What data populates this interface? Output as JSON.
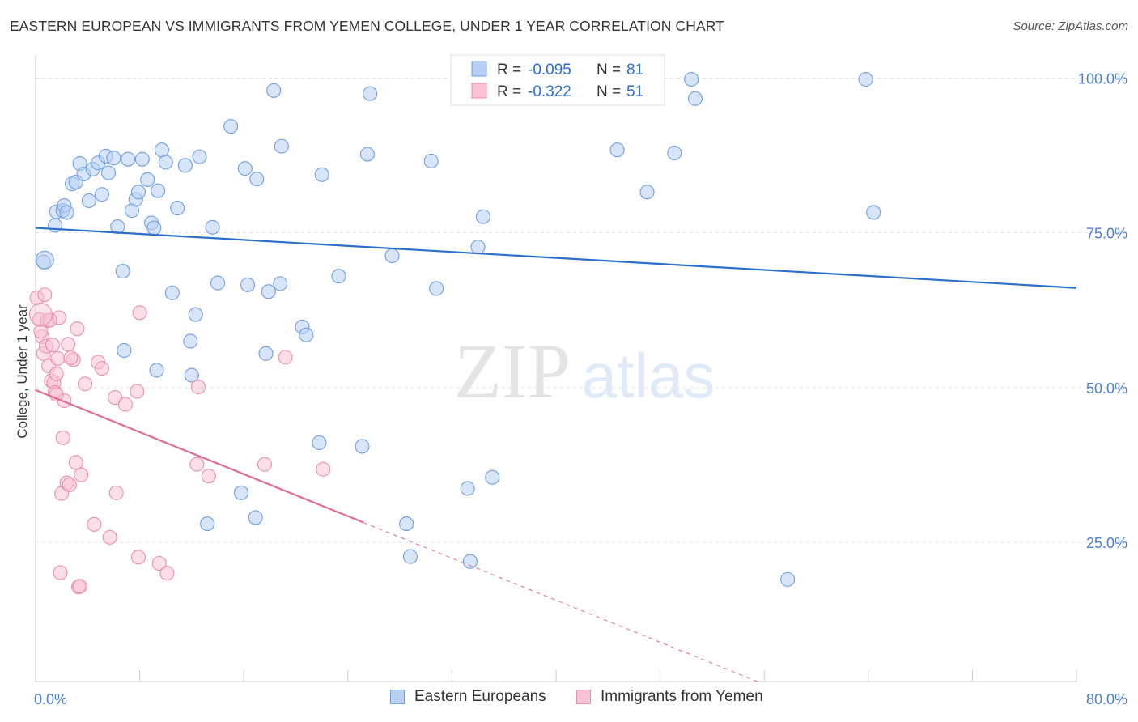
{
  "header": {
    "title": "EASTERN EUROPEAN VS IMMIGRANTS FROM YEMEN COLLEGE, UNDER 1 YEAR CORRELATION CHART",
    "source": "Source: ZipAtlas.com"
  },
  "watermark": {
    "zip": "ZIP",
    "atlas": "atlas"
  },
  "colors": {
    "blue": "#6f9fe0",
    "blue_fill": "#b8d0f3",
    "blue_line": "#2b6fcc",
    "pink": "#ea8fae",
    "pink_fill": "#f7c3d4",
    "pink_line": "#e06b94",
    "axis_text": "#4a7fd0"
  },
  "chart_data": {
    "type": "scatter",
    "title": "EASTERN EUROPEAN VS IMMIGRANTS FROM YEMEN COLLEGE, UNDER 1 YEAR CORRELATION CHART",
    "xlabel": "",
    "ylabel": "College, Under 1 year",
    "xlim": [
      0,
      80
    ],
    "ylim": [
      0,
      104
    ],
    "x_tick_labels": [
      "0.0%",
      "80.0%"
    ],
    "y_ticks": [
      25,
      50,
      75,
      100
    ],
    "y_tick_labels": [
      "25.0%",
      "50.0%",
      "75.0%",
      "100.0%"
    ],
    "grid": true,
    "legend": {
      "placement": "top-center",
      "entries": [
        {
          "r_label": "R =",
          "r": "-0.095",
          "n_label": "N =",
          "n": "81"
        },
        {
          "r_label": "R =",
          "r": "-0.322",
          "n_label": "N =",
          "n": "51"
        }
      ]
    },
    "series": [
      {
        "name": "Eastern Europeans",
        "trend": {
          "x": [
            0,
            80
          ],
          "y": [
            75.8,
            66.1
          ],
          "dashed_extension": false
        },
        "points": [
          [
            0.6,
            70.3
          ],
          [
            1.5,
            76.2
          ],
          [
            1.6,
            78.4
          ],
          [
            2.1,
            78.6
          ],
          [
            2.2,
            79.4
          ],
          [
            2.4,
            78.3
          ],
          [
            2.8,
            82.9
          ],
          [
            3.1,
            83.2
          ],
          [
            3.4,
            86.2
          ],
          [
            3.7,
            84.5
          ],
          [
            4.1,
            80.2
          ],
          [
            4.4,
            85.3
          ],
          [
            4.8,
            86.3
          ],
          [
            5.1,
            81.2
          ],
          [
            5.4,
            87.4
          ],
          [
            5.6,
            84.7
          ],
          [
            6.0,
            87.1
          ],
          [
            6.3,
            76.0
          ],
          [
            6.7,
            68.8
          ],
          [
            7.1,
            86.9
          ],
          [
            7.4,
            78.6
          ],
          [
            7.7,
            80.4
          ],
          [
            7.9,
            81.6
          ],
          [
            8.2,
            86.9
          ],
          [
            8.6,
            83.6
          ],
          [
            8.9,
            76.6
          ],
          [
            9.1,
            75.8
          ],
          [
            9.4,
            81.8
          ],
          [
            9.7,
            88.4
          ],
          [
            10.0,
            86.4
          ],
          [
            10.5,
            65.3
          ],
          [
            10.9,
            79.0
          ],
          [
            11.5,
            85.9
          ],
          [
            11.9,
            57.5
          ],
          [
            12.3,
            61.8
          ],
          [
            12.6,
            87.3
          ],
          [
            13.6,
            75.9
          ],
          [
            14.0,
            66.9
          ],
          [
            15.0,
            92.2
          ],
          [
            16.1,
            85.4
          ],
          [
            16.3,
            66.6
          ],
          [
            17.0,
            83.7
          ],
          [
            17.7,
            55.5
          ],
          [
            17.9,
            65.5
          ],
          [
            18.3,
            98.0
          ],
          [
            18.8,
            66.8
          ],
          [
            18.9,
            89.0
          ],
          [
            20.5,
            59.8
          ],
          [
            20.8,
            58.5
          ],
          [
            21.8,
            41.1
          ],
          [
            22.0,
            84.4
          ],
          [
            23.3,
            68.0
          ],
          [
            25.1,
            40.5
          ],
          [
            25.5,
            87.7
          ],
          [
            25.7,
            97.5
          ],
          [
            27.4,
            71.3
          ],
          [
            28.5,
            28.0
          ],
          [
            28.8,
            22.7
          ],
          [
            30.4,
            86.6
          ],
          [
            30.8,
            66.0
          ],
          [
            33.2,
            33.7
          ],
          [
            33.4,
            21.9
          ],
          [
            34.0,
            72.7
          ],
          [
            34.4,
            77.6
          ],
          [
            35.1,
            35.5
          ],
          [
            35.5,
            99.9
          ],
          [
            38.8,
            100.2
          ],
          [
            44.7,
            88.4
          ],
          [
            47.0,
            81.6
          ],
          [
            49.1,
            87.9
          ],
          [
            50.4,
            99.8
          ],
          [
            50.7,
            96.7
          ],
          [
            57.8,
            19.0
          ],
          [
            63.8,
            99.8
          ],
          [
            64.4,
            78.3
          ],
          [
            9.3,
            52.8
          ],
          [
            15.8,
            33.0
          ],
          [
            16.9,
            29.0
          ],
          [
            13.2,
            28.0
          ],
          [
            12.0,
            52.0
          ],
          [
            6.8,
            56.0
          ]
        ]
      },
      {
        "name": "Immigrants from Yemen",
        "trend": {
          "x": [
            0,
            25.2
          ],
          "y": [
            49.6,
            28.2
          ],
          "dashed_extension": true,
          "dash_to": {
            "x": [
              25.2,
              80
            ],
            "y": [
              28.2,
              -18.3
            ]
          }
        },
        "points": [
          [
            0.1,
            64.5
          ],
          [
            0.3,
            61.0
          ],
          [
            0.5,
            58.2
          ],
          [
            0.6,
            55.5
          ],
          [
            0.8,
            56.7
          ],
          [
            0.9,
            60.8
          ],
          [
            1.0,
            53.5
          ],
          [
            1.2,
            51.1
          ],
          [
            1.3,
            56.9
          ],
          [
            1.4,
            50.8
          ],
          [
            1.5,
            49.2
          ],
          [
            1.6,
            52.2
          ],
          [
            1.7,
            54.7
          ],
          [
            1.8,
            61.3
          ],
          [
            1.9,
            20.1
          ],
          [
            2.0,
            32.9
          ],
          [
            2.1,
            41.9
          ],
          [
            2.2,
            47.9
          ],
          [
            2.4,
            34.6
          ],
          [
            2.5,
            57.0
          ],
          [
            2.6,
            34.3
          ],
          [
            2.9,
            54.5
          ],
          [
            3.1,
            37.9
          ],
          [
            3.3,
            17.8
          ],
          [
            3.4,
            17.9
          ],
          [
            3.5,
            35.9
          ],
          [
            3.8,
            50.6
          ],
          [
            4.5,
            27.9
          ],
          [
            4.8,
            54.1
          ],
          [
            5.1,
            53.1
          ],
          [
            5.7,
            25.8
          ],
          [
            6.1,
            48.4
          ],
          [
            6.2,
            33.0
          ],
          [
            6.9,
            47.3
          ],
          [
            7.8,
            49.4
          ],
          [
            7.9,
            22.6
          ],
          [
            8.0,
            62.1
          ],
          [
            9.5,
            21.6
          ],
          [
            10.1,
            20.0
          ],
          [
            12.4,
            37.6
          ],
          [
            12.5,
            50.1
          ],
          [
            13.3,
            35.7
          ],
          [
            17.6,
            37.6
          ],
          [
            19.2,
            54.9
          ],
          [
            22.1,
            36.8
          ],
          [
            3.2,
            59.5
          ],
          [
            0.7,
            65.0
          ],
          [
            2.7,
            54.8
          ],
          [
            1.1,
            60.9
          ],
          [
            0.4,
            59.1
          ],
          [
            1.6,
            48.9
          ]
        ]
      }
    ]
  }
}
